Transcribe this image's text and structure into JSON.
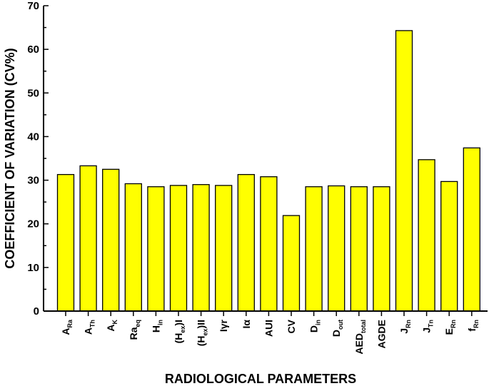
{
  "chart_data": {
    "type": "bar",
    "xlabel": "RADIOLOGICAL PARAMETERS",
    "ylabel": "COEFFICIENT OF VARIATION (CV%)",
    "ylim": [
      0,
      70
    ],
    "yticks": [
      0,
      10,
      20,
      30,
      40,
      50,
      60,
      70
    ],
    "grid": false,
    "bar_color": "#ffff00",
    "categories": [
      {
        "main": "A",
        "sub": "Ra"
      },
      {
        "main": "A",
        "sub": "Th"
      },
      {
        "main": "A",
        "sub": "K"
      },
      {
        "main": "Ra",
        "sub": "eq"
      },
      {
        "main": "H",
        "sub": "in"
      },
      {
        "main": "(H",
        "sub": "ex",
        "tail": ")I"
      },
      {
        "main": "(H",
        "sub": "ex",
        "tail": ")II"
      },
      {
        "main": "Iγr",
        "sub": ""
      },
      {
        "main": "Iα",
        "sub": ""
      },
      {
        "main": "AUI",
        "sub": ""
      },
      {
        "main": "CV",
        "sub": ""
      },
      {
        "main": "D",
        "sub": "in"
      },
      {
        "main": "D",
        "sub": "out"
      },
      {
        "main": "AED",
        "sub": "total"
      },
      {
        "main": "AGDE",
        "sub": ""
      },
      {
        "main": "J",
        "sub": "Rn"
      },
      {
        "main": "J",
        "sub": "Tn"
      },
      {
        "main": "E",
        "sub": "Rn"
      },
      {
        "main": "f",
        "sub": "Rn"
      }
    ],
    "values": [
      31.3,
      33.3,
      32.5,
      29.2,
      28.5,
      28.8,
      29.0,
      28.8,
      31.3,
      30.8,
      21.9,
      28.5,
      28.7,
      28.5,
      28.5,
      64.3,
      34.7,
      29.7,
      37.4
    ]
  }
}
